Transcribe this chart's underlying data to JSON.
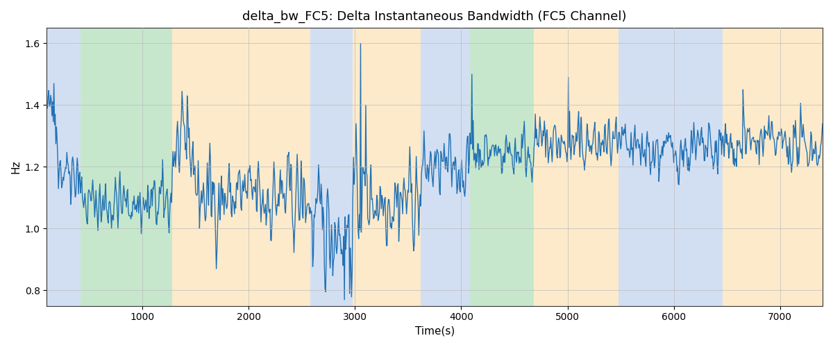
{
  "title": "delta_bw_FC5: Delta Instantaneous Bandwidth (FC5 Channel)",
  "xlabel": "Time(s)",
  "ylabel": "Hz",
  "xlim": [
    100,
    7400
  ],
  "ylim": [
    0.75,
    1.65
  ],
  "yticks": [
    0.8,
    1.0,
    1.2,
    1.4,
    1.6
  ],
  "xticks": [
    1000,
    2000,
    3000,
    4000,
    5000,
    6000,
    7000
  ],
  "line_color": "#2171b5",
  "line_width": 1.0,
  "background_color": "#ffffff",
  "grid_color": "#bbbbbb",
  "bands": [
    {
      "xmin": 100,
      "xmax": 420,
      "color": "#aec6e8",
      "alpha": 0.55
    },
    {
      "xmin": 420,
      "xmax": 1280,
      "color": "#98d4a3",
      "alpha": 0.55
    },
    {
      "xmin": 1280,
      "xmax": 2580,
      "color": "#fdd9a0",
      "alpha": 0.55
    },
    {
      "xmin": 2580,
      "xmax": 2980,
      "color": "#aec6e8",
      "alpha": 0.55
    },
    {
      "xmin": 2980,
      "xmax": 3620,
      "color": "#fdd9a0",
      "alpha": 0.55
    },
    {
      "xmin": 3620,
      "xmax": 4080,
      "color": "#aec6e8",
      "alpha": 0.55
    },
    {
      "xmin": 4080,
      "xmax": 4680,
      "color": "#98d4a3",
      "alpha": 0.55
    },
    {
      "xmin": 4680,
      "xmax": 5480,
      "color": "#fdd9a0",
      "alpha": 0.55
    },
    {
      "xmin": 5480,
      "xmax": 6460,
      "color": "#aec6e8",
      "alpha": 0.55
    },
    {
      "xmin": 6460,
      "xmax": 7400,
      "color": "#fdd9a0",
      "alpha": 0.55
    }
  ],
  "seed": 42
}
